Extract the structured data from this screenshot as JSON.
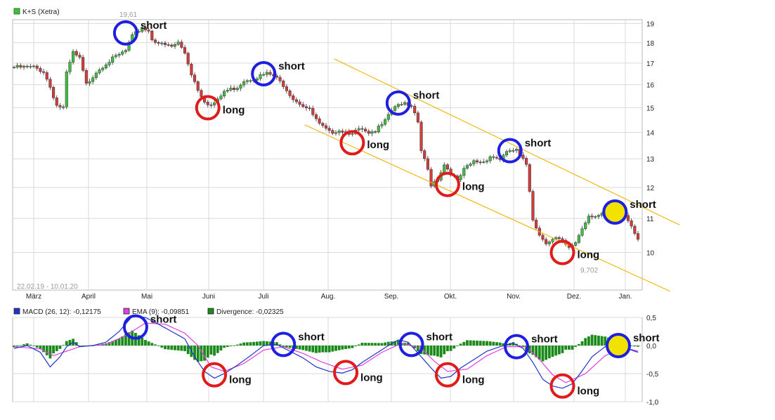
{
  "chart_data": [
    {
      "type": "candlestick",
      "legend": [
        {
          "name": "K+S (Xetra)",
          "color": "#3fbf3f"
        }
      ],
      "date_range_label": "22.02.19 - 10.01.20",
      "x_tick_labels": [
        "März",
        "April",
        "Mai",
        "Juni",
        "Juli",
        "Aug.",
        "Sep.",
        "Okt.",
        "Nov.",
        "Dez.",
        "Jan."
      ],
      "y_tick_labels": [
        "10",
        "11",
        "12",
        "13",
        "14",
        "15",
        "16",
        "17",
        "18",
        "19"
      ],
      "ylim": [
        9.0,
        19.2
      ],
      "y_scale": "log",
      "grid": true,
      "up_color": "#3fbf3f",
      "down_color": "#d23c3c",
      "high_label": "19,61",
      "low_label": "9,702",
      "close_path": [
        [
          0,
          16.8
        ],
        [
          6,
          16.8
        ],
        [
          9,
          16.6
        ],
        [
          11,
          15.9
        ],
        [
          13,
          15.1
        ],
        [
          15,
          15.0
        ],
        [
          16,
          16.5
        ],
        [
          18,
          17.5
        ],
        [
          20,
          17.2
        ],
        [
          22,
          16.0
        ],
        [
          25,
          16.6
        ],
        [
          28,
          17.0
        ],
        [
          31,
          17.3
        ],
        [
          34,
          17.6
        ],
        [
          36,
          18.3
        ],
        [
          39,
          18.8
        ],
        [
          41,
          18.6
        ],
        [
          42,
          18.2
        ],
        [
          45,
          17.9
        ],
        [
          48,
          17.8
        ],
        [
          50,
          18.0
        ],
        [
          52,
          17.5
        ],
        [
          54,
          16.5
        ],
        [
          56,
          15.8
        ],
        [
          58,
          15.3
        ],
        [
          60,
          15.1
        ],
        [
          62,
          15.3
        ],
        [
          64,
          15.7
        ],
        [
          68,
          15.9
        ],
        [
          70,
          16.2
        ],
        [
          73,
          16.3
        ],
        [
          77,
          16.5
        ],
        [
          79,
          16.4
        ],
        [
          82,
          16.0
        ],
        [
          85,
          15.4
        ],
        [
          88,
          15.1
        ],
        [
          90,
          14.9
        ],
        [
          93,
          14.3
        ],
        [
          96,
          14.0
        ],
        [
          99,
          14.1
        ],
        [
          102,
          14.0
        ],
        [
          106,
          14.1
        ],
        [
          108,
          13.9
        ],
        [
          110,
          14.0
        ],
        [
          113,
          14.6
        ],
        [
          116,
          15.1
        ],
        [
          118,
          15.2
        ],
        [
          121,
          15.0
        ],
        [
          123,
          14.4
        ],
        [
          124,
          13.3
        ],
        [
          126,
          12.6
        ],
        [
          127,
          12.1
        ],
        [
          129,
          12.3
        ],
        [
          131,
          12.8
        ],
        [
          133,
          12.5
        ],
        [
          135,
          12.2
        ],
        [
          137,
          12.6
        ],
        [
          140,
          12.9
        ],
        [
          143,
          12.9
        ],
        [
          145,
          13.1
        ],
        [
          148,
          13.0
        ],
        [
          151,
          13.3
        ],
        [
          153,
          13.3
        ],
        [
          154,
          13.1
        ],
        [
          156,
          12.8
        ],
        [
          157,
          11.9
        ],
        [
          158,
          11.0
        ],
        [
          160,
          10.5
        ],
        [
          162,
          10.3
        ],
        [
          165,
          10.4
        ],
        [
          167,
          10.3
        ],
        [
          169,
          10.1
        ],
        [
          171,
          10.3
        ],
        [
          173,
          10.7
        ],
        [
          175,
          11.1
        ],
        [
          178,
          11.1
        ],
        [
          181,
          11.2
        ],
        [
          184,
          11.3
        ],
        [
          186,
          11.1
        ],
        [
          188,
          10.8
        ],
        [
          190,
          10.4
        ]
      ],
      "channel_lines": [
        {
          "name": "upper",
          "from": [
            97.5,
            17.2
          ],
          "to": [
            202.7,
            10.8
          ]
        },
        {
          "name": "lower",
          "from": [
            88.5,
            14.3
          ],
          "to": [
            199.8,
            8.97
          ]
        }
      ],
      "annotations": [
        {
          "text": "short",
          "type": "circle",
          "color": "blue",
          "at": [
            34,
            18.5
          ]
        },
        {
          "text": "long",
          "type": "circle",
          "color": "red",
          "at": [
            59,
            15.0
          ]
        },
        {
          "text": "short",
          "type": "circle",
          "color": "blue",
          "at": [
            76,
            16.5
          ]
        },
        {
          "text": "long",
          "type": "circle",
          "color": "red",
          "at": [
            103,
            13.6
          ]
        },
        {
          "text": "short",
          "type": "circle",
          "color": "blue",
          "at": [
            117,
            15.2
          ]
        },
        {
          "text": "long",
          "type": "circle",
          "color": "red",
          "at": [
            132,
            12.1
          ]
        },
        {
          "text": "short",
          "type": "circle",
          "color": "blue",
          "at": [
            151,
            13.3
          ]
        },
        {
          "text": "long",
          "type": "circle",
          "color": "red",
          "at": [
            167,
            10.0
          ]
        },
        {
          "text": "short",
          "type": "filled-circle",
          "color": "blue",
          "fill": "yellow",
          "at": [
            183,
            11.2
          ]
        }
      ]
    },
    {
      "type": "line",
      "legend": [
        {
          "name": "MACD (26, 12): -0,12175",
          "color": "#2233cc"
        },
        {
          "name": "EMA (9): -0,09851",
          "color": "#e040e0"
        },
        {
          "name": "Divergence: -0,02325",
          "color": "#1a8a1a"
        }
      ],
      "y_tick_labels": [
        "0,5",
        "0,0",
        "-0,5",
        "-1,0"
      ],
      "ylim": [
        -1.0,
        0.5
      ],
      "grid": true,
      "histogram_color": "#1a8a1a",
      "macd_path": [
        [
          0,
          -0.05
        ],
        [
          4,
          0.0
        ],
        [
          8,
          -0.12
        ],
        [
          11,
          -0.38
        ],
        [
          14,
          -0.2
        ],
        [
          16,
          -0.02
        ],
        [
          18,
          0.06
        ],
        [
          20,
          -0.02
        ],
        [
          24,
          0.0
        ],
        [
          28,
          0.06
        ],
        [
          32,
          0.25
        ],
        [
          36,
          0.52
        ],
        [
          40,
          0.5
        ],
        [
          44,
          0.38
        ],
        [
          48,
          0.25
        ],
        [
          52,
          0.12
        ],
        [
          55,
          -0.2
        ],
        [
          58,
          -0.46
        ],
        [
          61,
          -0.58
        ],
        [
          64,
          -0.5
        ],
        [
          68,
          -0.35
        ],
        [
          72,
          -0.18
        ],
        [
          76,
          0.0
        ],
        [
          80,
          0.02
        ],
        [
          84,
          -0.1
        ],
        [
          88,
          -0.22
        ],
        [
          92,
          -0.38
        ],
        [
          96,
          -0.46
        ],
        [
          100,
          -0.49
        ],
        [
          103,
          -0.43
        ],
        [
          106,
          -0.3
        ],
        [
          110,
          -0.15
        ],
        [
          114,
          0.0
        ],
        [
          117,
          0.1
        ],
        [
          120,
          0.06
        ],
        [
          124,
          -0.2
        ],
        [
          127,
          -0.4
        ],
        [
          130,
          -0.58
        ],
        [
          133,
          -0.55
        ],
        [
          136,
          -0.4
        ],
        [
          140,
          -0.25
        ],
        [
          144,
          -0.1
        ],
        [
          148,
          -0.02
        ],
        [
          152,
          0.04
        ],
        [
          155,
          -0.05
        ],
        [
          158,
          -0.3
        ],
        [
          161,
          -0.6
        ],
        [
          164,
          -0.72
        ],
        [
          167,
          -0.76
        ],
        [
          170,
          -0.68
        ],
        [
          173,
          -0.45
        ],
        [
          176,
          -0.2
        ],
        [
          180,
          -0.02
        ],
        [
          184,
          0.0
        ],
        [
          188,
          -0.08
        ],
        [
          190,
          -0.12
        ]
      ],
      "ema_path": [
        [
          0,
          -0.02
        ],
        [
          8,
          -0.06
        ],
        [
          12,
          -0.18
        ],
        [
          16,
          -0.1
        ],
        [
          20,
          -0.02
        ],
        [
          28,
          0.02
        ],
        [
          34,
          0.18
        ],
        [
          40,
          0.4
        ],
        [
          46,
          0.38
        ],
        [
          52,
          0.22
        ],
        [
          56,
          0.0
        ],
        [
          60,
          -0.38
        ],
        [
          64,
          -0.46
        ],
        [
          70,
          -0.32
        ],
        [
          76,
          -0.08
        ],
        [
          82,
          -0.02
        ],
        [
          88,
          -0.14
        ],
        [
          94,
          -0.3
        ],
        [
          100,
          -0.42
        ],
        [
          106,
          -0.35
        ],
        [
          112,
          -0.12
        ],
        [
          118,
          0.04
        ],
        [
          124,
          -0.05
        ],
        [
          128,
          -0.28
        ],
        [
          132,
          -0.46
        ],
        [
          138,
          -0.42
        ],
        [
          144,
          -0.18
        ],
        [
          150,
          -0.02
        ],
        [
          156,
          -0.02
        ],
        [
          160,
          -0.25
        ],
        [
          164,
          -0.52
        ],
        [
          168,
          -0.66
        ],
        [
          174,
          -0.5
        ],
        [
          180,
          -0.18
        ],
        [
          186,
          -0.04
        ],
        [
          190,
          -0.1
        ]
      ],
      "annotations": [
        {
          "text": "short",
          "type": "circle",
          "color": "blue",
          "at": [
            37,
            0.33
          ]
        },
        {
          "text": "long",
          "type": "circle",
          "color": "red",
          "at": [
            61,
            -0.52
          ]
        },
        {
          "text": "short",
          "type": "circle",
          "color": "blue",
          "at": [
            82,
            0.02
          ]
        },
        {
          "text": "long",
          "type": "circle",
          "color": "red",
          "at": [
            101,
            -0.48
          ]
        },
        {
          "text": "short",
          "type": "circle",
          "color": "blue",
          "at": [
            121,
            0.02
          ]
        },
        {
          "text": "long",
          "type": "circle",
          "color": "red",
          "at": [
            132,
            -0.52
          ]
        },
        {
          "text": "short",
          "type": "circle",
          "color": "blue",
          "at": [
            153,
            -0.02
          ]
        },
        {
          "text": "long",
          "type": "circle",
          "color": "red",
          "at": [
            167,
            -0.72
          ]
        },
        {
          "text": "short",
          "type": "filled-circle",
          "color": "blue",
          "fill": "yellow",
          "at": [
            184,
            0.0
          ]
        }
      ]
    }
  ]
}
